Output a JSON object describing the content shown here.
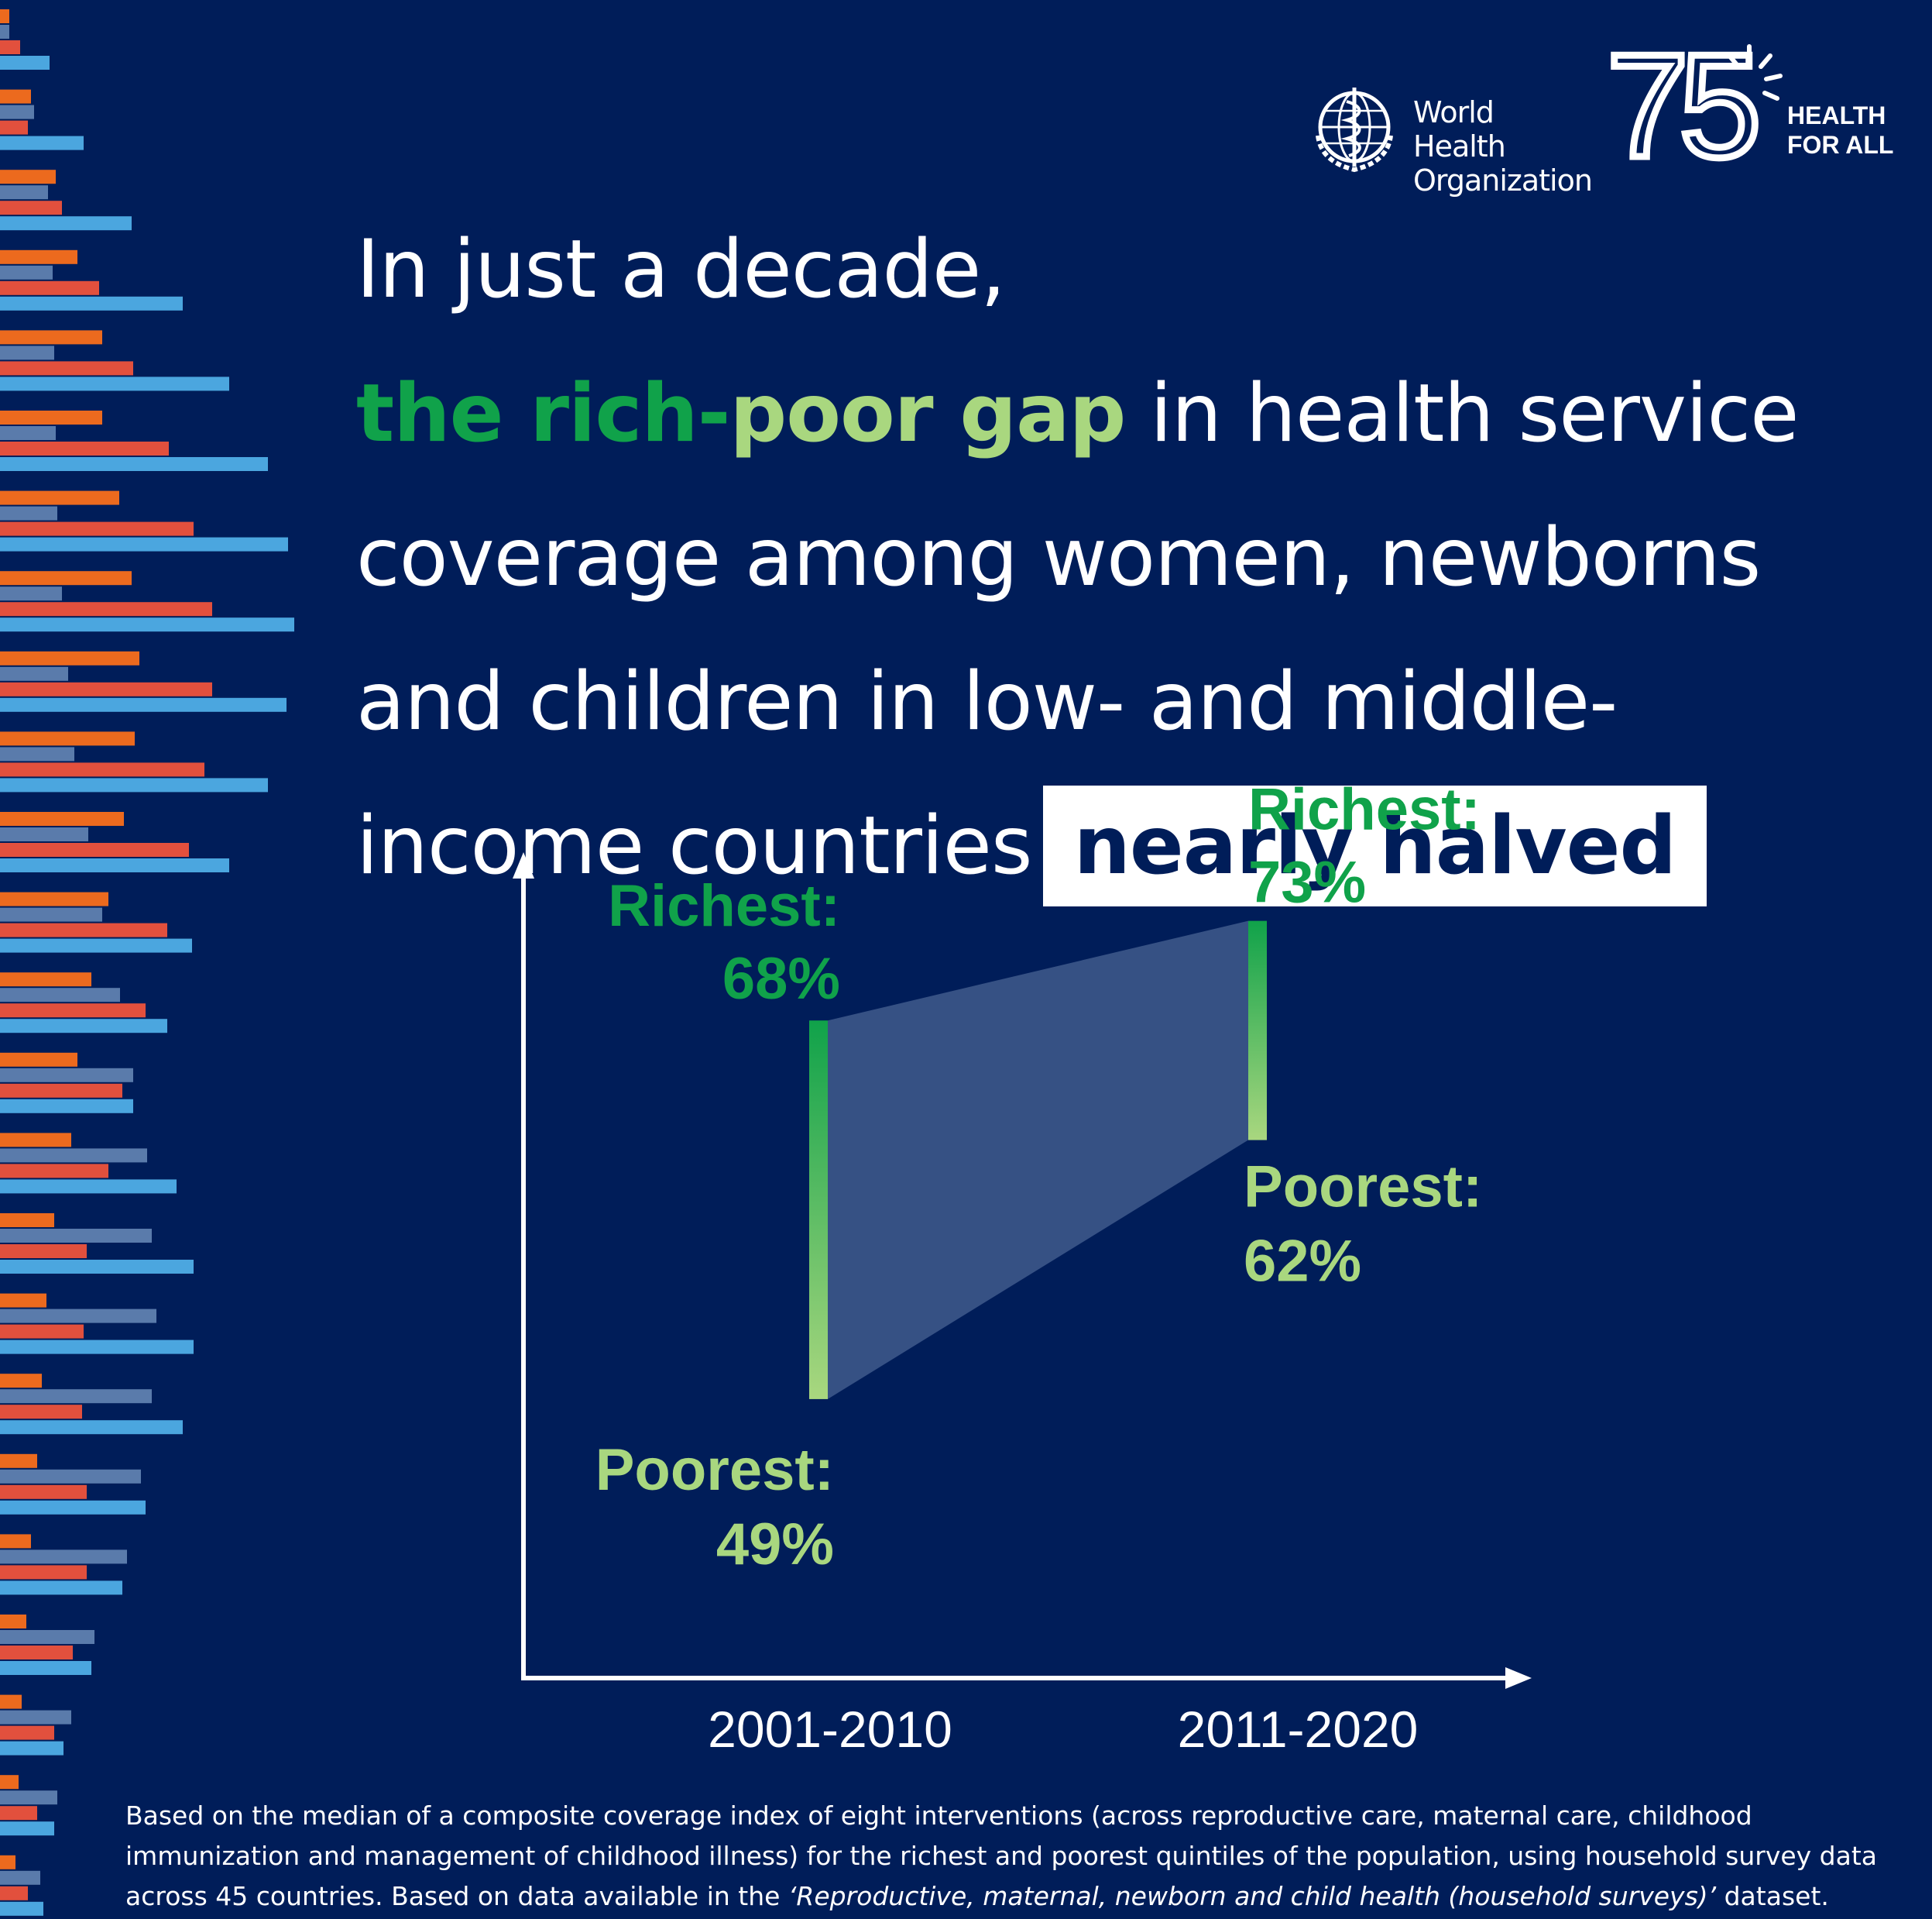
{
  "brand": {
    "org_line1": "World Health",
    "org_line2": "Organization",
    "anniversary": "75",
    "tagline_line1": "HEALTH",
    "tagline_line2": "FOR ALL"
  },
  "headline": {
    "line1": "In just a decade,",
    "line2_green": "the rich-",
    "line2_light": "poor gap",
    "line2_rest": " in health service",
    "line3": "coverage among women, newborns",
    "line4": "and children in low- and middle-",
    "line5_text": "income countries",
    "line5_box": "nearly halved"
  },
  "chart_data": {
    "type": "range",
    "categories": [
      "2001-2010",
      "2011-2020"
    ],
    "series": [
      {
        "name": "Richest",
        "values": [
          68,
          73
        ]
      },
      {
        "name": "Poorest",
        "values": [
          49,
          62
        ]
      }
    ],
    "labels": {
      "richest": "Richest:",
      "poorest": "Poorest:",
      "values": {
        "richest_2001": "68%",
        "poorest_2001": "49%",
        "richest_2011": "73%",
        "poorest_2011": "62%"
      }
    },
    "ylim": [
      35,
      85
    ],
    "colors": {
      "richest": "#10a24a",
      "poorest": "#a9d77f",
      "gap": "#3f5a8c"
    }
  },
  "footnote": {
    "part1": "Based on the median of a composite coverage index of eight interventions (across reproductive care, maternal care, childhood immunization and management of childhood illness) for the richest and poorest quintiles of the population, using household survey data across 45 countries. Based on data available in the ",
    "dataset": "‘Reproductive, maternal, newborn and child health (household surveys)’",
    "part2": " dataset."
  }
}
